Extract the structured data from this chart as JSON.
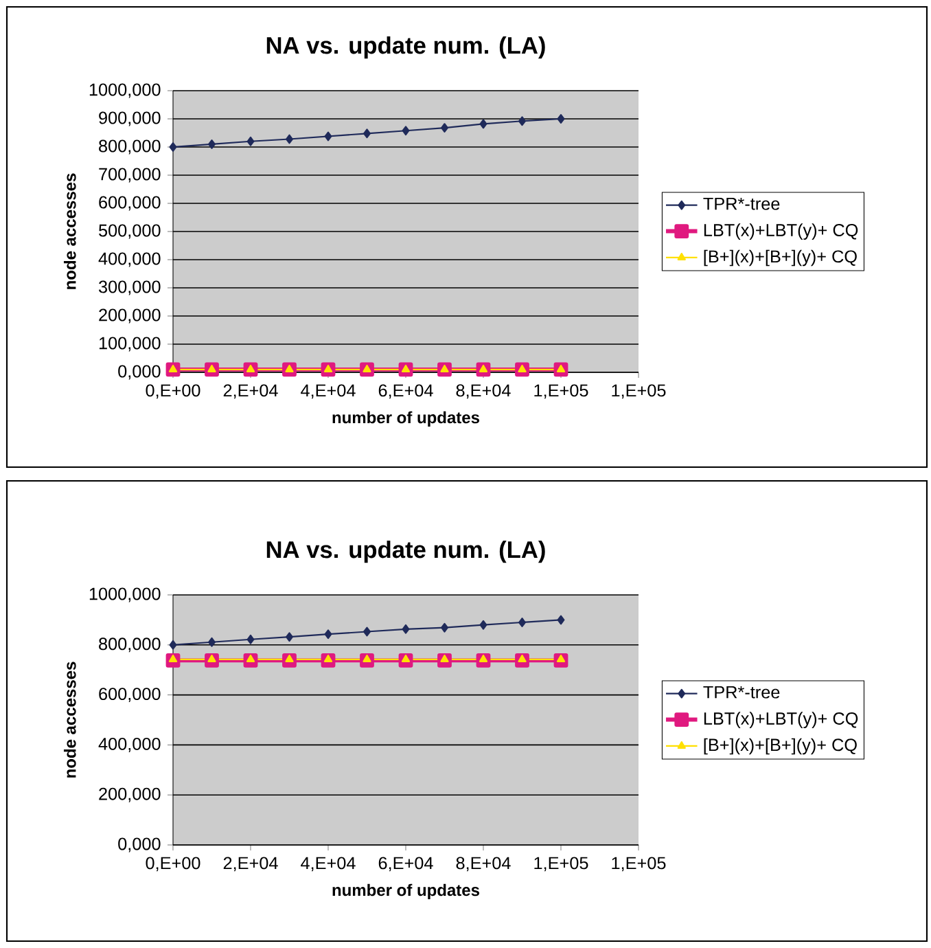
{
  "chart_data": [
    {
      "type": "line",
      "title": "NA vs. update num. (LA)",
      "xlabel": "number of updates",
      "ylabel": "node accesses",
      "categories": [
        "0,E+00",
        null,
        "2,E+04",
        null,
        "4,E+04",
        null,
        "6,E+04",
        null,
        "8,E+04",
        null,
        "1,E+05",
        null,
        "1,E+05"
      ],
      "series": [
        {
          "name": "TPR*-tree",
          "color": "#1f2a5a",
          "marker": "diamond",
          "values": [
            800,
            810,
            820,
            828,
            838,
            848,
            858,
            868,
            882,
            892,
            900,
            null,
            null
          ]
        },
        {
          "name": "LBT(x)+LBT(y)+ CQ",
          "color": "#e0197f",
          "marker": "square",
          "values": [
            10,
            10,
            10,
            10,
            10,
            10,
            10,
            10,
            10,
            10,
            10,
            null,
            null
          ]
        },
        {
          "name": "[B+](x)+[B+](y)+ CQ",
          "color": "#ffe000",
          "marker": "triangle",
          "values": [
            10,
            10,
            10,
            10,
            10,
            10,
            10,
            10,
            10,
            10,
            10,
            null,
            null
          ]
        }
      ],
      "ylim": [
        0,
        1000
      ],
      "yticks": [
        {
          "value": 0,
          "label": "0,000"
        },
        {
          "value": 100,
          "label": "100,000"
        },
        {
          "value": 200,
          "label": "200,000"
        },
        {
          "value": 300,
          "label": "300,000"
        },
        {
          "value": 400,
          "label": "400,000"
        },
        {
          "value": 500,
          "label": "500,000"
        },
        {
          "value": 600,
          "label": "600,000"
        },
        {
          "value": 700,
          "label": "700,000"
        },
        {
          "value": 800,
          "label": "800,000"
        },
        {
          "value": 900,
          "label": "900,000"
        },
        {
          "value": 1000,
          "label": "1000,000"
        }
      ],
      "grid": "y",
      "legend": "right"
    },
    {
      "type": "line",
      "title": "NA vs. update num. (LA)",
      "xlabel": "number of updates",
      "ylabel": "node accesses",
      "categories": [
        "0,E+00",
        null,
        "2,E+04",
        null,
        "4,E+04",
        null,
        "6,E+04",
        null,
        "8,E+04",
        null,
        "1,E+05",
        null,
        "1,E+05"
      ],
      "series": [
        {
          "name": "TPR*-tree",
          "color": "#1f2a5a",
          "marker": "diamond",
          "values": [
            800,
            811,
            822,
            832,
            843,
            853,
            863,
            869,
            880,
            890,
            900,
            null,
            null
          ]
        },
        {
          "name": "LBT(x)+LBT(y)+ CQ",
          "color": "#e0197f",
          "marker": "square",
          "values": [
            738,
            738,
            738,
            738,
            738,
            738,
            738,
            738,
            738,
            738,
            738,
            null,
            null
          ]
        },
        {
          "name": "[B+](x)+[B+](y)+ CQ",
          "color": "#ffe000",
          "marker": "triangle",
          "values": [
            742,
            742,
            742,
            742,
            742,
            742,
            742,
            742,
            742,
            742,
            742,
            null,
            null
          ]
        }
      ],
      "ylim": [
        0,
        1000
      ],
      "yticks": [
        {
          "value": 0,
          "label": "0,000"
        },
        {
          "value": 200,
          "label": "200,000"
        },
        {
          "value": 400,
          "label": "400,000"
        },
        {
          "value": 600,
          "label": "600,000"
        },
        {
          "value": 800,
          "label": "800,000"
        },
        {
          "value": 1000,
          "label": "1000,000"
        }
      ],
      "grid": "y",
      "legend": "right"
    }
  ]
}
